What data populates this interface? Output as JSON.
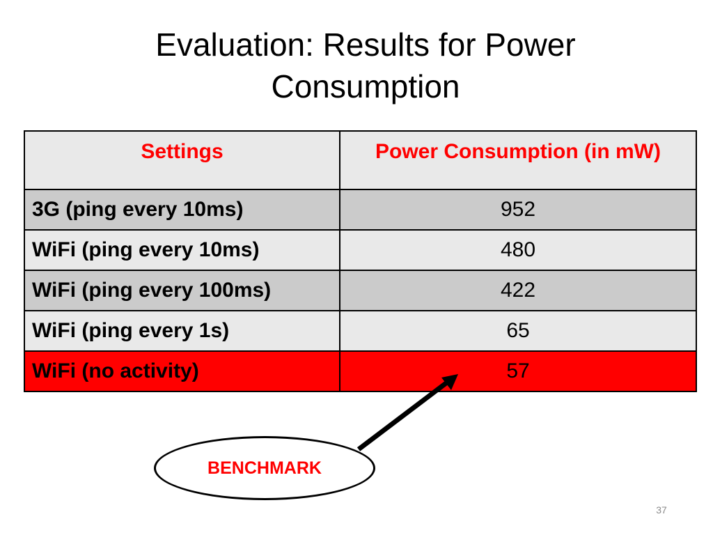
{
  "slide": {
    "title_line1": "Evaluation: Results for Power",
    "title_line2": "Consumption",
    "slide_number": "37"
  },
  "table": {
    "headers": [
      "Settings",
      "Power Consumption (in mW)"
    ],
    "rows": [
      {
        "setting": "3G (ping every 10ms)",
        "power": "952"
      },
      {
        "setting": "WiFi (ping every 10ms)",
        "power": "480"
      },
      {
        "setting": "WiFi (ping every 100ms)",
        "power": "422"
      },
      {
        "setting": "WiFi (ping every 1s)",
        "power": "65"
      },
      {
        "setting": "WiFi (no activity)",
        "power": "57"
      }
    ],
    "highlight_row_color": "#ff0000",
    "header_text_color": "#ff0000"
  },
  "callout": {
    "label": "BENCHMARK",
    "text_color": "#ff0000"
  }
}
